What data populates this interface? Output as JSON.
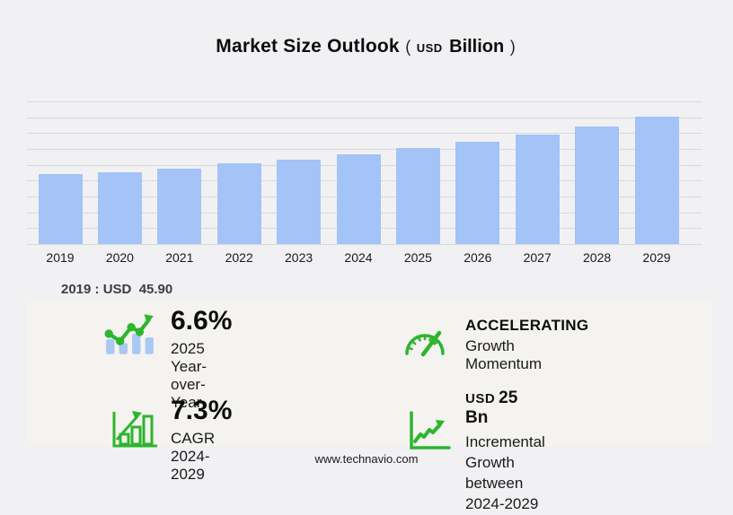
{
  "title": {
    "main": "Market Size Outlook",
    "paren_open": "(",
    "unit_currency": "USD",
    "unit_scale": "Billion",
    "paren_close": ")"
  },
  "chart_data": {
    "type": "bar",
    "title": "Market Size Outlook (USD Billion)",
    "categories": [
      "2019",
      "2020",
      "2021",
      "2022",
      "2023",
      "2024",
      "2025",
      "2026",
      "2027",
      "2028",
      "2029"
    ],
    "values": [
      45.9,
      47.2,
      49.5,
      52.9,
      55.4,
      58.8,
      62.7,
      67.1,
      71.9,
      77.2,
      83.8
    ],
    "xlabel": "",
    "ylabel": "USD Billion",
    "ylim": [
      0,
      95
    ],
    "grid": true,
    "legend_position": "none",
    "bar_color": "#a4c3f7",
    "gridline_color": "#d9d9d9",
    "note": "only 2019 value labeled on image (45.90); other values estimated from bar heights"
  },
  "annotation": {
    "base_year_note": "2019 : USD  45.90"
  },
  "stats": [
    {
      "icon": "yoy-trend-icon",
      "value": "6.6%",
      "label": "2025 Year-over-Year"
    },
    {
      "icon": "gauge-icon",
      "value": "ACCELERATING",
      "label": "Growth Momentum"
    },
    {
      "icon": "bar-growth-icon",
      "value": "7.3%",
      "label": "CAGR 2024-2029"
    },
    {
      "icon": "line-chart-up-icon",
      "value_prefix": "USD",
      "value": "25 Bn",
      "label": "Incremental Growth",
      "label2": "between 2024-2029"
    }
  ],
  "footer": {
    "url": "www.technavio.com"
  },
  "colors": {
    "accent_green": "#2db52d",
    "bar_blue": "#a4c3f7",
    "icon_bar_blue": "#a9c8f2",
    "gridline": "#d9d9d9",
    "background": "#f1f1f4",
    "panel": "#f4f3f0"
  }
}
